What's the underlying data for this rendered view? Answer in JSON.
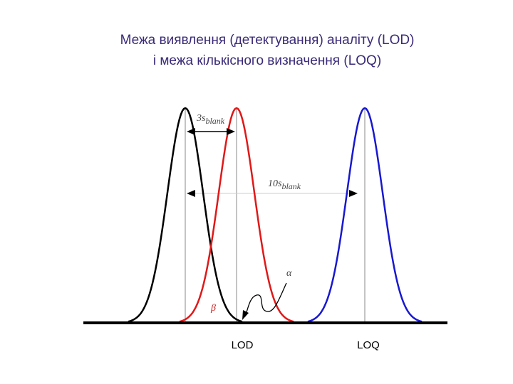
{
  "header": {
    "title_line1": "Межа виявлення (детектування) аналіту (LOD)",
    "title_line2": "і межа кількісного визначення (LOQ)"
  },
  "labels": {
    "three_s": {
      "main": "3s",
      "sub": "blank"
    },
    "ten_s": {
      "main": "10s",
      "sub": "blank"
    },
    "alpha": "α",
    "beta": "β",
    "lod": "LOD",
    "loq": "LOQ"
  }
}
